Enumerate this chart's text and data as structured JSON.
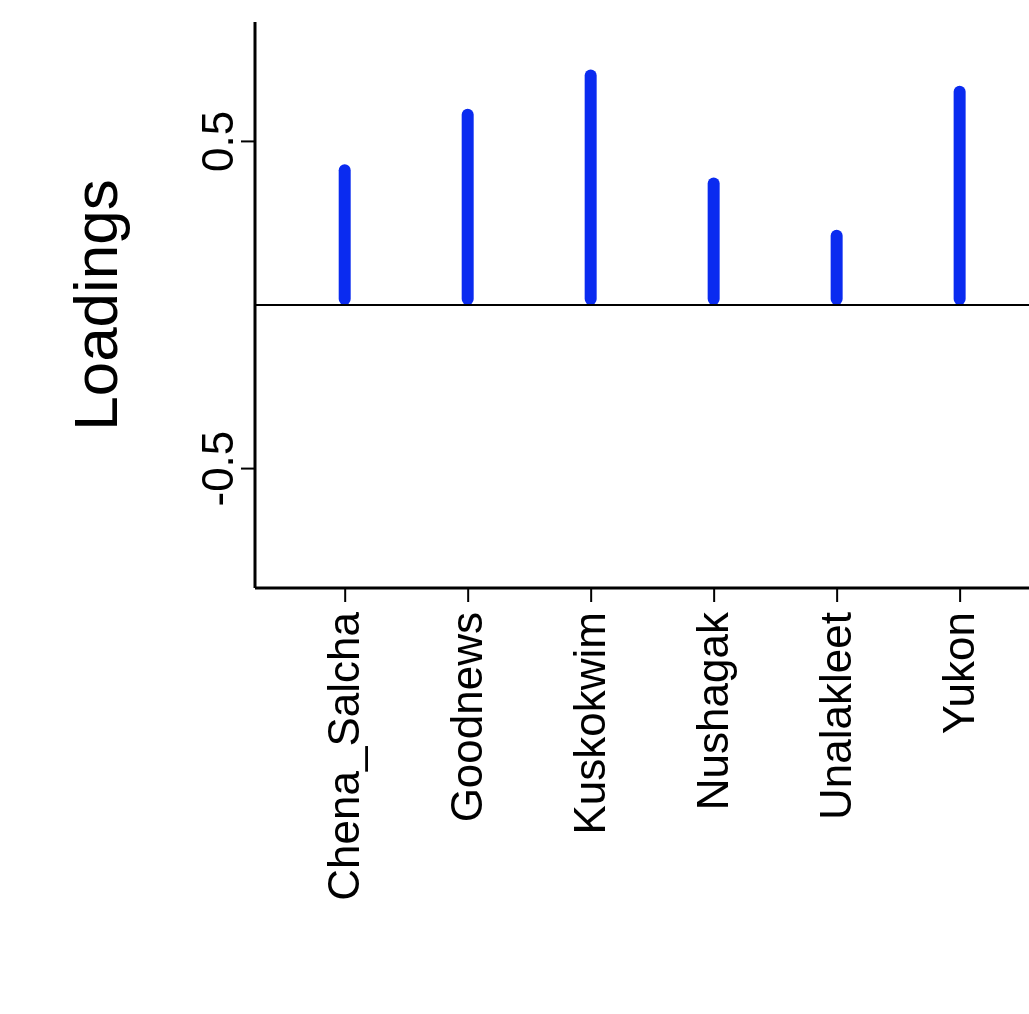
{
  "chart_data": {
    "type": "bar",
    "ylabel": "Loadings",
    "categories": [
      "Chena_Salcha",
      "Goodnews",
      "Kuskokwim",
      "Nushagak",
      "Unalakleet",
      "Yukon"
    ],
    "values": [
      0.43,
      0.6,
      0.72,
      0.39,
      0.23,
      0.67
    ],
    "color": "#0a2bf0",
    "ylim": [
      -0.865,
      0.865
    ],
    "yticks": [
      -0.5,
      0.5
    ],
    "grid": false,
    "legend": false,
    "ref_lines": [
      {
        "axis": "y",
        "value": 0,
        "color": "#000000"
      }
    ]
  }
}
